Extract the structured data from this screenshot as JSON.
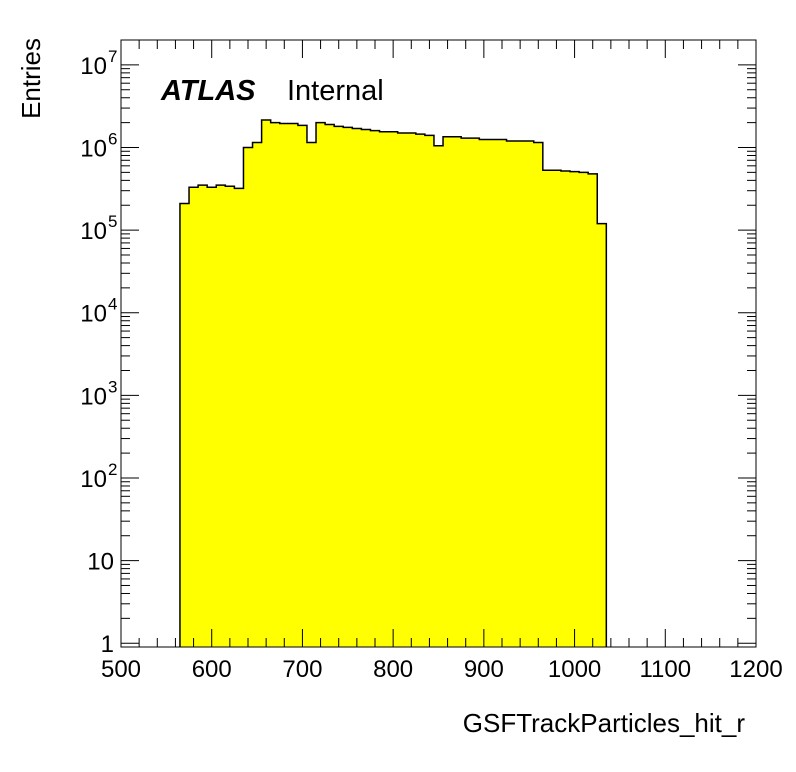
{
  "chart_data": {
    "type": "histogram",
    "title": "",
    "xlabel": "GSFTrackParticles_hit_r",
    "ylabel": "Entries",
    "annotation": {
      "experiment": "ATLAS",
      "status": "Internal"
    },
    "xlim": [
      500,
      1200
    ],
    "ylim": [
      0.9,
      20000000
    ],
    "y_scale": "log",
    "grid": false,
    "legend": "none",
    "bin_width": 10,
    "x_ticks": [
      500,
      600,
      700,
      800,
      900,
      1000,
      1100,
      1200
    ],
    "x_tick_labels": [
      "500",
      "600",
      "700",
      "800",
      "900",
      "1000",
      "1100",
      "1200"
    ],
    "y_ticks": [
      1,
      10,
      100,
      1000,
      10000,
      100000,
      1000000,
      10000000
    ],
    "y_tick_labels": [
      {
        "base": "1",
        "exp": ""
      },
      {
        "base": "10",
        "exp": ""
      },
      {
        "base": "10",
        "exp": "2"
      },
      {
        "base": "10",
        "exp": "3"
      },
      {
        "base": "10",
        "exp": "4"
      },
      {
        "base": "10",
        "exp": "5"
      },
      {
        "base": "10",
        "exp": "6"
      },
      {
        "base": "10",
        "exp": "7"
      }
    ],
    "bin_edges_start": 565,
    "values": [
      210000,
      330000,
      350000,
      330000,
      350000,
      340000,
      320000,
      1000000,
      1150000,
      2150000,
      2000000,
      1950000,
      1950000,
      1850000,
      1150000,
      2000000,
      1900000,
      1800000,
      1750000,
      1700000,
      1650000,
      1600000,
      1550000,
      1550000,
      1500000,
      1500000,
      1450000,
      1400000,
      1050000,
      1350000,
      1350000,
      1300000,
      1300000,
      1250000,
      1250000,
      1250000,
      1200000,
      1200000,
      1200000,
      1150000,
      530000,
      530000,
      520000,
      510000,
      500000,
      480000,
      120000
    ],
    "fill_color": "#ffff00",
    "line_color": "#000000"
  }
}
